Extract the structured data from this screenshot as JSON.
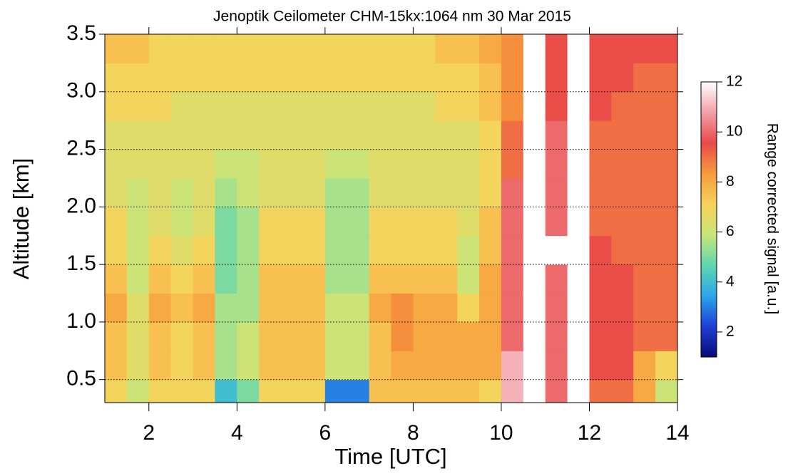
{
  "chart_data": {
    "type": "heatmap",
    "title": "Jenoptik Ceilometer CHM-15kx:1064 nm 30 Mar 2015",
    "x_label": "Time [UTC]",
    "y_label": "Altitude [km]",
    "colorbar_label": "Range corrected signal [a.u.]",
    "xlim": [
      1,
      14
    ],
    "ylim": [
      0.3,
      3.5
    ],
    "xticks": [
      2,
      4,
      6,
      8,
      10,
      12,
      14
    ],
    "yticks": [
      {
        "value": 0.5,
        "label": "0.5"
      },
      {
        "value": 1,
        "label": "1.0"
      },
      {
        "value": 1.5,
        "label": "1.5"
      },
      {
        "value": 2,
        "label": "2.0"
      },
      {
        "value": 2.5,
        "label": "2.5"
      },
      {
        "value": 3,
        "label": "3.0"
      },
      {
        "value": 3.5,
        "label": "3.5"
      }
    ],
    "grid": true,
    "clim": [
      1,
      12
    ],
    "cticks": [
      2,
      4,
      6,
      8,
      10,
      12
    ],
    "colorscale": [
      "#0a0a7a",
      "#1f3fd6",
      "#2aa6e8",
      "#5fd6b0",
      "#c8e67a",
      "#f7d25a",
      "#f79a3c",
      "#e84a4a",
      "#f2a0a8",
      "#ffffff"
    ],
    "x_edges": [
      1,
      1.5,
      2,
      2.5,
      3,
      3.5,
      4,
      4.5,
      5,
      5.5,
      6,
      6.5,
      7,
      7.5,
      8,
      8.5,
      9,
      9.5,
      10,
      10.5,
      11,
      11.5,
      12,
      12.5,
      13,
      13.5,
      14
    ],
    "y_edges": [
      0.3,
      0.5,
      0.75,
      1,
      1.25,
      1.5,
      1.75,
      2,
      2.25,
      2.5,
      2.75,
      3,
      3.25,
      3.5
    ],
    "z": [
      [
        7,
        6,
        7,
        7,
        7,
        4,
        5,
        7,
        7,
        7,
        3,
        3,
        7.5,
        7.5,
        7.5,
        7.5,
        7.5,
        7,
        11,
        12,
        10,
        12,
        9,
        9,
        8,
        6
      ],
      [
        7.5,
        6.5,
        7.5,
        7,
        7.5,
        5.5,
        6,
        7.5,
        7.5,
        7.5,
        6,
        6,
        7.5,
        8,
        8,
        8,
        8,
        8,
        11,
        12,
        10,
        12,
        9.5,
        9.5,
        8,
        7
      ],
      [
        7.5,
        6.5,
        7.5,
        7,
        7.5,
        5.5,
        6,
        7.5,
        7.5,
        7.5,
        6,
        6,
        7.5,
        8.5,
        8,
        8,
        8,
        8,
        10,
        12,
        10,
        12,
        9.5,
        9.5,
        9,
        9
      ],
      [
        8,
        6.5,
        8,
        7.5,
        8,
        5.5,
        5.5,
        7.5,
        7.5,
        7.5,
        6,
        6,
        8,
        8.5,
        8,
        8,
        7,
        8,
        10,
        12,
        10,
        12,
        9.5,
        9.5,
        9,
        9
      ],
      [
        7.5,
        6,
        7.5,
        7,
        7.5,
        5,
        5.5,
        7.5,
        7.5,
        7.5,
        5.5,
        5.5,
        7.5,
        7.5,
        7.5,
        7.5,
        6,
        8,
        10,
        12,
        10,
        12,
        9.5,
        9.5,
        9,
        9
      ],
      [
        7,
        6,
        7,
        6.5,
        7,
        5,
        5.5,
        7,
        7,
        7,
        5.5,
        5.5,
        7,
        7,
        7,
        7,
        6,
        7.5,
        10,
        12,
        12,
        12,
        9.5,
        9,
        9,
        9
      ],
      [
        7,
        6,
        6.5,
        6,
        6.5,
        5,
        5.5,
        7,
        7,
        7,
        5.5,
        5.5,
        7,
        7,
        7,
        7,
        6.5,
        7.5,
        10,
        12,
        10,
        12,
        9,
        9,
        9,
        9
      ],
      [
        6.5,
        6,
        6.5,
        6,
        6.5,
        5.5,
        6,
        6.5,
        6.5,
        6.5,
        5.5,
        5.5,
        6.5,
        6.5,
        6.5,
        6.5,
        6.5,
        7,
        10,
        12,
        10,
        12,
        9,
        9,
        9,
        9
      ],
      [
        6.5,
        6.5,
        6.5,
        6.5,
        6.5,
        6,
        6,
        6.5,
        6.5,
        6.5,
        6,
        6,
        6.5,
        6.5,
        6.5,
        6.5,
        6.5,
        7,
        9,
        12,
        10,
        12,
        9,
        9,
        9,
        9
      ],
      [
        6.5,
        6.5,
        6.5,
        6.5,
        6.5,
        6.5,
        6.5,
        6.5,
        6.5,
        6.5,
        6.5,
        6.5,
        6.5,
        6.5,
        6.5,
        6.5,
        6.5,
        7,
        9,
        12,
        10,
        12,
        9,
        9,
        9,
        9
      ],
      [
        7,
        7,
        7,
        6.5,
        6.5,
        6.5,
        6.5,
        6.5,
        6.5,
        6.5,
        6.5,
        6.5,
        6.5,
        6.5,
        6.5,
        7,
        7,
        7.5,
        8.5,
        12,
        9.5,
        12,
        9.5,
        9,
        9,
        9
      ],
      [
        7,
        7,
        7,
        7,
        7,
        7,
        7,
        7,
        7,
        7,
        7,
        7,
        7,
        7,
        7,
        7,
        7,
        7.5,
        8.5,
        12,
        9.5,
        12,
        9.5,
        9.5,
        9,
        9
      ],
      [
        7.5,
        7.5,
        7,
        7,
        7,
        7,
        7,
        7,
        7,
        7,
        7,
        7,
        7,
        7,
        7,
        7.5,
        7.5,
        8,
        8.5,
        12,
        9.5,
        12,
        9.5,
        9.5,
        9.5,
        9.5
      ]
    ]
  }
}
